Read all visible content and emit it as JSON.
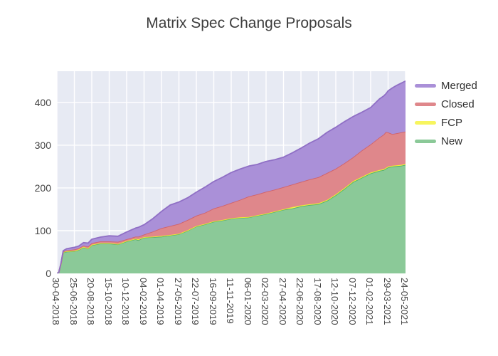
{
  "figure": {
    "title": "Matrix Spec Change Proposals"
  },
  "chart_data": {
    "type": "area",
    "stacked": true,
    "title": "Matrix Spec Change Proposals",
    "plot_background": "#e7eaf3",
    "grid_color": "#ffffff",
    "x_axis": {
      "range_days": [
        0,
        1120
      ],
      "tick_days": [
        0,
        56,
        112,
        168,
        224,
        280,
        336,
        392,
        448,
        504,
        560,
        616,
        672,
        728,
        784,
        840,
        896,
        952,
        1008,
        1064,
        1120
      ],
      "tick_labels": [
        "30-04-2018",
        "25-06-2018",
        "20-08-2018",
        "15-10-2018",
        "10-12-2018",
        "04-02-2019",
        "01-04-2019",
        "27-05-2019",
        "22-07-2019",
        "16-09-2019",
        "11-11-2019",
        "06-01-2020",
        "02-03-2020",
        "27-04-2020",
        "22-06-2020",
        "17-08-2020",
        "12-10-2020",
        "07-12-2020",
        "01-02-2021",
        "29-03-2021",
        "24-05-2021"
      ]
    },
    "y_axis": {
      "ticks": [
        0,
        100,
        200,
        300,
        400
      ],
      "range": [
        0,
        473
      ]
    },
    "days": [
      0,
      6,
      13,
      20,
      32,
      56,
      70,
      85,
      100,
      112,
      140,
      168,
      196,
      224,
      252,
      262,
      280,
      308,
      336,
      364,
      392,
      420,
      448,
      476,
      504,
      532,
      560,
      588,
      616,
      644,
      672,
      700,
      728,
      756,
      784,
      812,
      840,
      868,
      896,
      924,
      952,
      980,
      1008,
      1036,
      1050,
      1057,
      1064,
      1078,
      1092,
      1106,
      1120
    ],
    "series": [
      {
        "name": "New",
        "fill": "#8bc998",
        "line": "#4fae6b",
        "values": [
          0,
          2,
          22,
          49,
          51,
          52,
          55,
          61,
          58,
          66,
          70,
          70,
          68,
          75,
          80,
          78,
          84,
          85,
          86,
          89,
          92,
          100,
          110,
          115,
          121,
          124,
          128,
          130,
          131,
          135,
          139,
          144,
          149,
          152,
          157,
          160,
          162,
          170,
          183,
          198,
          214,
          224,
          234,
          240,
          242,
          245,
          248,
          250,
          251,
          252,
          254
        ]
      },
      {
        "name": "FCP",
        "fill": "#f7f55e",
        "line": "#eeeb2f",
        "values": [
          0,
          0,
          0,
          1,
          1,
          1,
          1,
          1,
          1,
          1,
          1,
          1,
          1,
          1,
          1,
          2,
          1,
          1,
          2,
          1,
          1,
          1,
          1,
          1,
          1,
          1,
          1,
          1,
          1,
          1,
          1,
          1,
          1,
          3,
          2,
          2,
          2,
          2,
          2,
          2,
          2,
          2,
          2,
          2,
          2,
          2,
          2,
          2,
          2,
          2,
          2
        ]
      },
      {
        "name": "Closed",
        "fill": "#df878b",
        "line": "#d0626a",
        "values": [
          0,
          0,
          1,
          1,
          2,
          3,
          3,
          3,
          4,
          4,
          4,
          4,
          5,
          4,
          5,
          6,
          6,
          12,
          18,
          21,
          23,
          24,
          24,
          26,
          30,
          33,
          36,
          41,
          48,
          49,
          51,
          51,
          52,
          53,
          55,
          58,
          61,
          63,
          60,
          58,
          56,
          62,
          66,
          76,
          81,
          84,
          80,
          74,
          75,
          76,
          76
        ]
      },
      {
        "name": "Merged",
        "fill": "#aa90d8",
        "line": "#8f6fc5",
        "values": [
          0,
          0,
          1,
          2,
          4,
          5,
          5,
          7,
          8,
          9,
          10,
          13,
          13,
          17,
          20,
          22,
          23,
          30,
          39,
          49,
          51,
          52,
          55,
          60,
          63,
          67,
          71,
          72,
          71,
          70,
          71,
          70,
          70,
          74,
          79,
          85,
          90,
          95,
          97,
          97,
          95,
          89,
          86,
          90,
          90,
          89,
          97,
          108,
          112,
          115,
          118
        ]
      }
    ],
    "legend_order": [
      3,
      2,
      1,
      0
    ]
  }
}
